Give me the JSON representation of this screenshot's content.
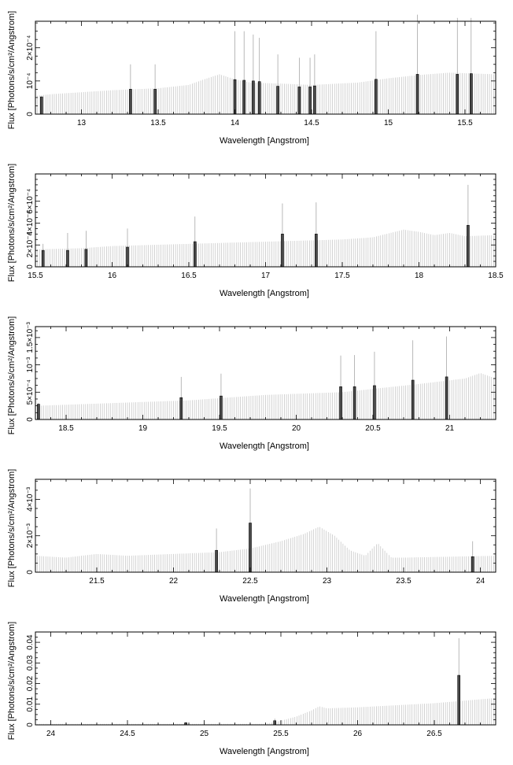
{
  "chart_data": [
    {
      "type": "bar",
      "xlabel": "Wavelength [Angstrom]",
      "ylabel": "Flux [Photons/s/cm²/Angstrom]",
      "xlim": [
        12.7,
        15.7
      ],
      "ylim": [
        0,
        0.00028
      ],
      "xticks": [
        "13",
        "13.5",
        "14",
        "14.5",
        "15",
        "15.5"
      ],
      "xtick_values": [
        13,
        13.5,
        14,
        14.5,
        15,
        15.5
      ],
      "yticks": [
        "0",
        "10⁻⁴",
        "2×10⁻⁴"
      ],
      "ytick_values": [
        0,
        0.0001,
        0.0002
      ],
      "grid": false,
      "continuum": {
        "x": [
          12.7,
          12.8,
          13.0,
          13.2,
          13.5,
          13.7,
          13.8,
          13.9,
          14.0,
          14.1,
          14.3,
          14.5,
          14.8,
          15.0,
          15.2,
          15.4,
          15.7
        ],
        "y": [
          5.5e-05,
          6e-05,
          6.6e-05,
          7.2e-05,
          7.8e-05,
          8.8e-05,
          0.000105,
          0.00012,
          0.000105,
          9.5e-05,
          9.2e-05,
          8.8e-05,
          9.5e-05,
          0.000108,
          0.000118,
          0.000125,
          0.00012
        ]
      },
      "lines": {
        "x": [
          12.74,
          13.32,
          13.48,
          14.0,
          14.06,
          14.12,
          14.16,
          14.28,
          14.42,
          14.49,
          14.52,
          14.92,
          15.19,
          15.45,
          15.54
        ],
        "y": [
          5.2e-05,
          7.5e-05,
          7.5e-05,
          0.000104,
          0.000102,
          0.0001,
          9.8e-05,
          8.4e-05,
          8.2e-05,
          8.2e-05,
          8.5e-05,
          0.000105,
          0.00012,
          0.00012,
          0.000122
        ],
        "err": [
          5e-05,
          0.00015,
          0.00015,
          0.00025,
          0.00025,
          0.00024,
          0.00023,
          0.00018,
          0.00017,
          0.00017,
          0.00018,
          0.00025,
          0.0003,
          0.00029,
          0.00029
        ]
      }
    },
    {
      "type": "bar",
      "xlabel": "Wavelength [Angstrom]",
      "ylabel": "Flux [Photons/s/cm²/Angstrom]",
      "xlim": [
        15.5,
        18.5
      ],
      "ylim": [
        0,
        0.00085
      ],
      "xticks": [
        "15.5",
        "16",
        "16.5",
        "17",
        "17.5",
        "18",
        "18.5"
      ],
      "xtick_values": [
        15.5,
        16,
        16.5,
        17,
        17.5,
        18,
        18.5
      ],
      "yticks": [
        "0",
        "2×10⁻⁴",
        "4×10⁻⁴",
        "6×10⁻⁴"
      ],
      "ytick_values": [
        0,
        0.0002,
        0.0004,
        0.0006
      ],
      "grid": false,
      "continuum": {
        "x": [
          15.5,
          15.8,
          16.0,
          16.5,
          17.0,
          17.5,
          17.7,
          17.9,
          18.0,
          18.1,
          18.2,
          18.3,
          18.5
        ],
        "y": [
          0.00016,
          0.00017,
          0.00019,
          0.00021,
          0.00023,
          0.00025,
          0.00027,
          0.00034,
          0.00032,
          0.00029,
          0.00031,
          0.00028,
          0.00029
        ]
      },
      "lines": {
        "x": [
          15.55,
          15.71,
          15.83,
          16.1,
          16.54,
          17.11,
          17.33,
          18.32
        ],
        "y": [
          0.00015,
          0.00015,
          0.00016,
          0.00018,
          0.00023,
          0.0003,
          0.0003,
          0.00038
        ],
        "err": [
          0.00021,
          0.00031,
          0.00033,
          0.00035,
          0.00046,
          0.00058,
          0.00059,
          0.00075
        ]
      }
    },
    {
      "type": "bar",
      "xlabel": "Wavelength [Angstrom]",
      "ylabel": "Flux [Photons/s/cm²/Angstrom]",
      "xlim": [
        18.3,
        21.3
      ],
      "ylim": [
        0,
        0.0017
      ],
      "xticks": [
        "18.5",
        "19",
        "19.5",
        "20",
        "20.5",
        "21"
      ],
      "xtick_values": [
        18.5,
        19,
        19.5,
        20,
        20.5,
        21
      ],
      "yticks": [
        "0",
        "5×10⁻⁴",
        "10⁻³",
        "1.5×10⁻³"
      ],
      "ytick_values": [
        0,
        0.0005,
        0.001,
        0.0015
      ],
      "grid": false,
      "continuum": {
        "x": [
          18.3,
          18.8,
          19.3,
          19.8,
          20.3,
          20.8,
          21.1,
          21.2,
          21.3
        ],
        "y": [
          0.00025,
          0.0003,
          0.00035,
          0.00045,
          0.0005,
          0.00065,
          0.00075,
          0.00085,
          0.00075
        ]
      },
      "lines": {
        "x": [
          18.32,
          19.25,
          19.51,
          20.29,
          20.38,
          20.51,
          20.76,
          20.98
        ],
        "y": [
          0.00028,
          0.0004,
          0.00043,
          0.0006,
          0.0006,
          0.00062,
          0.00072,
          0.00078
        ],
        "err": [
          0.0003,
          0.00078,
          0.00084,
          0.00117,
          0.00118,
          0.00124,
          0.00145,
          0.00152
        ]
      }
    },
    {
      "type": "bar",
      "xlabel": "Wavelength [Angstrom]",
      "ylabel": "Flux [Photons/s/cm²/Angstrom]",
      "xlim": [
        21.1,
        24.1
      ],
      "ylim": [
        0,
        0.0051
      ],
      "xticks": [
        "21.5",
        "22",
        "22.5",
        "23",
        "23.5",
        "24"
      ],
      "xtick_values": [
        21.5,
        22,
        22.5,
        23,
        23.5,
        24
      ],
      "yticks": [
        "0",
        "2×10⁻³",
        "4×10⁻³"
      ],
      "ytick_values": [
        0,
        0.002,
        0.004
      ],
      "grid": false,
      "continuum": {
        "x": [
          21.1,
          21.3,
          21.5,
          21.7,
          22.0,
          22.3,
          22.5,
          22.7,
          22.85,
          22.95,
          23.05,
          23.15,
          23.25,
          23.33,
          23.42,
          23.5,
          23.8,
          24.1
        ],
        "y": [
          0.0009,
          0.0008,
          0.001,
          0.0009,
          0.001,
          0.0011,
          0.0013,
          0.0017,
          0.0021,
          0.0025,
          0.002,
          0.0012,
          0.0009,
          0.0016,
          0.0008,
          0.0008,
          0.00085,
          0.0009
        ]
      },
      "lines": {
        "x": [
          22.28,
          22.5,
          23.95
        ],
        "y": [
          0.0012,
          0.0027,
          0.00085
        ],
        "err": [
          0.0024,
          0.0046,
          0.0017
        ]
      }
    },
    {
      "type": "bar",
      "xlabel": "Wavelength [Angstrom]",
      "ylabel": "Flux [Photons/s/cm²/Angstrom]",
      "xlim": [
        23.9,
        26.9
      ],
      "ylim": [
        0,
        0.045
      ],
      "xticks": [
        "24",
        "24.5",
        "25",
        "25.5",
        "26",
        "26.5"
      ],
      "xtick_values": [
        24,
        24.5,
        25,
        25.5,
        26,
        26.5
      ],
      "yticks": [
        "0",
        "0.01",
        "0.02",
        "0.03",
        "0.04"
      ],
      "ytick_values": [
        0,
        0.01,
        0.02,
        0.03,
        0.04
      ],
      "grid": false,
      "continuum": {
        "x": [
          23.9,
          25.4,
          25.5,
          25.6,
          25.7,
          25.75,
          25.8,
          26.0,
          26.5,
          26.9
        ],
        "y": [
          0.0005,
          0.0005,
          0.002,
          0.004,
          0.007,
          0.009,
          0.008,
          0.0085,
          0.0105,
          0.013
        ]
      },
      "lines": {
        "x": [
          24.88,
          25.46,
          26.66
        ],
        "y": [
          0.001,
          0.002,
          0.024
        ],
        "err": [
          0.0015,
          0.003,
          0.042
        ]
      }
    }
  ]
}
